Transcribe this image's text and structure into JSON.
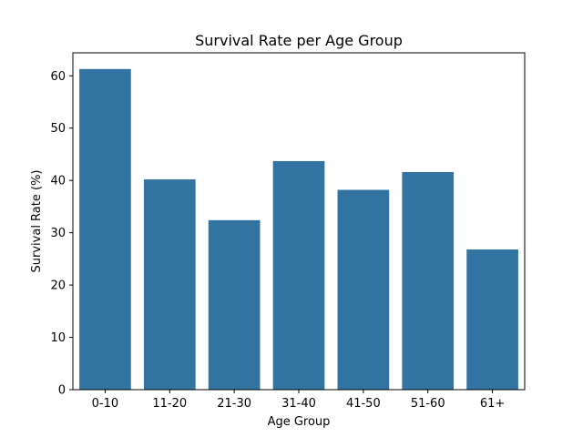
{
  "chart_data": {
    "type": "bar",
    "title": "Survival Rate per Age Group",
    "xlabel": "Age Group",
    "ylabel": "Survival Rate (%)",
    "categories": [
      "0-10",
      "11-20",
      "21-30",
      "31-40",
      "41-50",
      "51-60",
      "61+"
    ],
    "values": [
      61.3,
      40.2,
      32.4,
      43.7,
      38.2,
      41.6,
      26.8
    ],
    "ylim": [
      0,
      64.4
    ],
    "yticks": [
      0,
      10,
      20,
      30,
      40,
      50,
      60
    ],
    "grid": false,
    "bar_color": "#3274a1"
  }
}
